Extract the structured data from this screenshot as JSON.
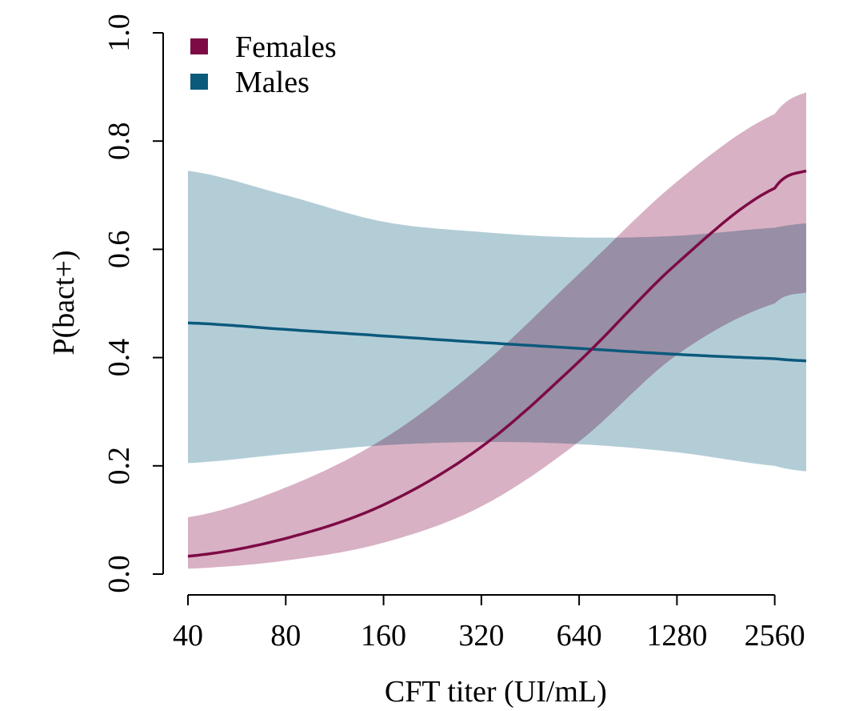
{
  "chart_data": {
    "type": "line",
    "xlabel": "CFT titer (UI/mL)",
    "ylabel": "P(bact+)",
    "x_scale": "log2",
    "xlim": [
      40,
      3200
    ],
    "ylim": [
      0.0,
      1.0
    ],
    "x_ticks": [
      40,
      80,
      160,
      320,
      640,
      1280,
      2560
    ],
    "x_tick_labels": [
      "40",
      "80",
      "160",
      "320",
      "640",
      "1280",
      "2560"
    ],
    "y_ticks": [
      0.0,
      0.2,
      0.4,
      0.6,
      0.8,
      1.0
    ],
    "y_tick_labels": [
      "0.0",
      "0.2",
      "0.4",
      "0.6",
      "0.8",
      "1.0"
    ],
    "grid": false,
    "legend": {
      "position": "top-left"
    },
    "series": [
      {
        "name": "Males",
        "color": "#0b5a7c",
        "band_color": "#b3cdd7",
        "x": [
          40,
          80,
          160,
          320,
          640,
          1280,
          2560,
          3200
        ],
        "y": [
          0.464,
          0.452,
          0.44,
          0.428,
          0.417,
          0.406,
          0.398,
          0.394
        ],
        "lower": [
          0.205,
          0.222,
          0.238,
          0.244,
          0.24,
          0.225,
          0.2,
          0.19
        ],
        "upper": [
          0.745,
          0.7,
          0.651,
          0.632,
          0.622,
          0.625,
          0.64,
          0.648
        ]
      },
      {
        "name": "Females",
        "color": "#7d0a45",
        "band_color": "#d8b1c4",
        "x": [
          40,
          80,
          160,
          320,
          640,
          1280,
          2560,
          3200
        ],
        "y": [
          0.033,
          0.066,
          0.128,
          0.235,
          0.393,
          0.574,
          0.713,
          0.745
        ],
        "lower": [
          0.01,
          0.025,
          0.058,
          0.125,
          0.245,
          0.405,
          0.5,
          0.52
        ],
        "upper": [
          0.105,
          0.16,
          0.25,
          0.385,
          0.555,
          0.725,
          0.85,
          0.89
        ]
      }
    ]
  }
}
